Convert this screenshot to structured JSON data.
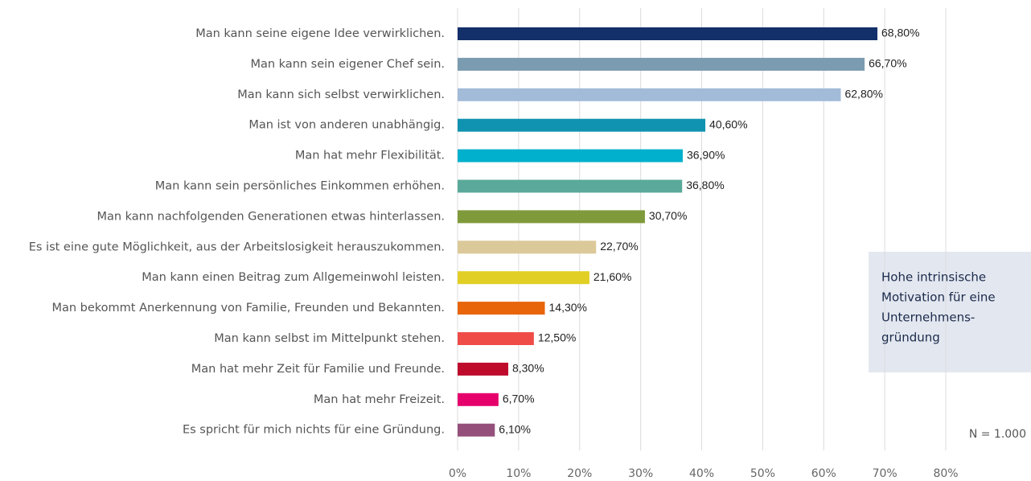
{
  "chart_data": {
    "type": "bar",
    "orientation": "horizontal",
    "categories": [
      "Man kann seine eigene Idee verwirklichen.",
      "Man kann sein eigener Chef sein.",
      "Man kann sich selbst verwirklichen.",
      "Man ist von anderen unabhängig.",
      "Man hat mehr Flexibilität.",
      "Man kann sein persönliches Einkommen erhöhen.",
      "Man kann nachfolgenden Generationen etwas hinterlassen.",
      "Es ist eine gute Möglichkeit, aus der Arbeitslosigkeit herauszukommen.",
      "Man kann einen Beitrag zum Allgemeinwohl leisten.",
      "Man bekommt Anerkennung von Familie, Freunden und Bekannten.",
      "Man kann selbst im Mittelpunkt stehen.",
      "Man hat mehr Zeit für Familie und Freunde.",
      "Man hat mehr Freizeit.",
      "Es spricht für mich nichts für eine Gründung."
    ],
    "values": [
      68.8,
      66.7,
      62.8,
      40.6,
      36.9,
      36.8,
      30.7,
      22.7,
      21.6,
      14.3,
      12.5,
      8.3,
      6.7,
      6.1
    ],
    "value_labels": [
      "68,80%",
      "66,70%",
      "62,80%",
      "40,60%",
      "36,90%",
      "36,80%",
      "30,70%",
      "22,70%",
      "21,60%",
      "14,30%",
      "12,50%",
      "8,30%",
      "6,70%",
      "6,10%"
    ],
    "colors": [
      "#14306b",
      "#7a9bb0",
      "#a2bbd9",
      "#0f93b0",
      "#00b0cc",
      "#5aa99a",
      "#7f9a3a",
      "#dcc99a",
      "#e2cf25",
      "#e8650a",
      "#ef4c48",
      "#be0b2c",
      "#e5006b",
      "#94507a"
    ],
    "xlim": [
      0,
      80
    ],
    "xticks": [
      {
        "value": 0,
        "label": "0%"
      },
      {
        "value": 10,
        "label": "10%"
      },
      {
        "value": 20,
        "label": "20%"
      },
      {
        "value": 30,
        "label": "30%"
      },
      {
        "value": 40,
        "label": "40%"
      },
      {
        "value": 50,
        "label": "50%"
      },
      {
        "value": 60,
        "label": "60%"
      },
      {
        "value": 70,
        "label": "70%"
      },
      {
        "value": 80,
        "label": "80%"
      }
    ],
    "grid": true,
    "annotation": [
      "Hohe intrinsische",
      "Motivation für eine",
      "Unternehmens-",
      "gründung"
    ],
    "note": "N = 1.000"
  }
}
